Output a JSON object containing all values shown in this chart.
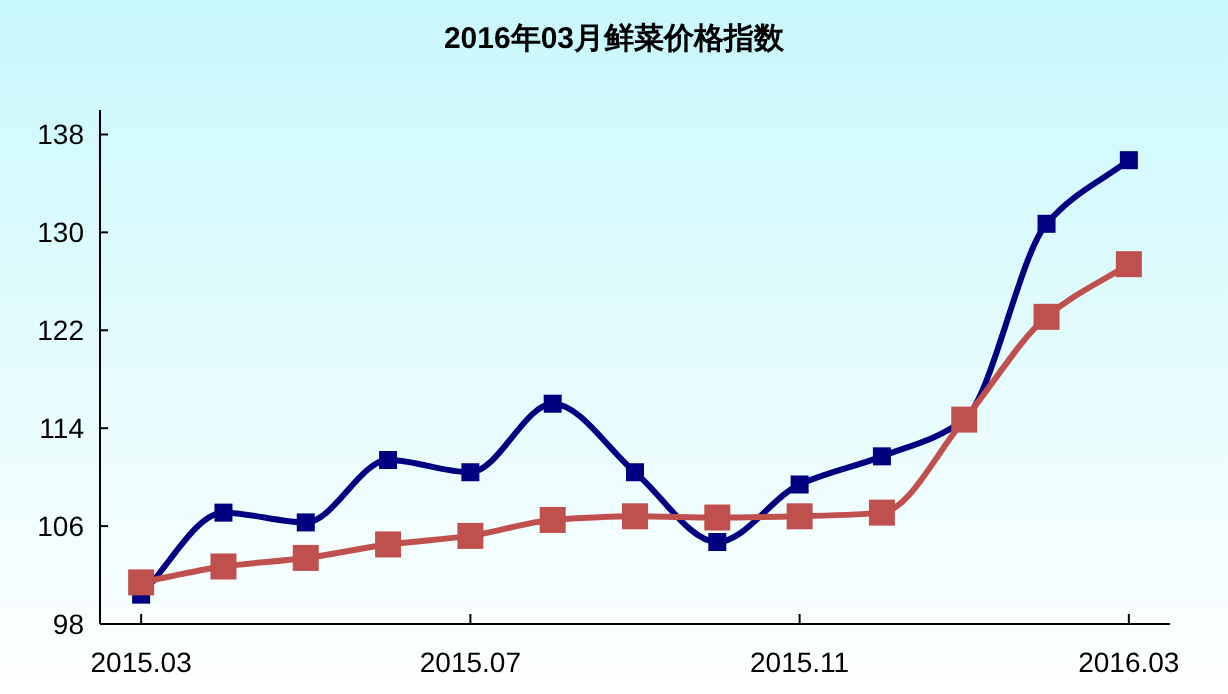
{
  "chart_data": {
    "type": "line",
    "title": "2016年03月鲜菜价格指数",
    "categories": [
      "2015.03",
      null,
      null,
      null,
      "2015.07",
      null,
      null,
      null,
      "2015.11",
      null,
      null,
      null,
      "2016.03"
    ],
    "series": [
      {
        "color": "#000080",
        "marker": "square",
        "values": [
          100.4,
          107.1,
          106.3,
          111.4,
          110.4,
          116.0,
          110.4,
          104.7,
          109.4,
          111.7,
          114.7,
          130.7,
          135.9
        ]
      },
      {
        "color": "#c0504d",
        "marker": "square",
        "values": [
          101.4,
          102.7,
          103.4,
          104.5,
          105.2,
          106.5,
          106.8,
          106.7,
          106.8,
          107.1,
          114.7,
          123.1,
          127.4
        ]
      }
    ],
    "ylim": [
      98,
      140
    ],
    "yticks": [
      98,
      106,
      114,
      122,
      130,
      138
    ],
    "grid": false
  }
}
